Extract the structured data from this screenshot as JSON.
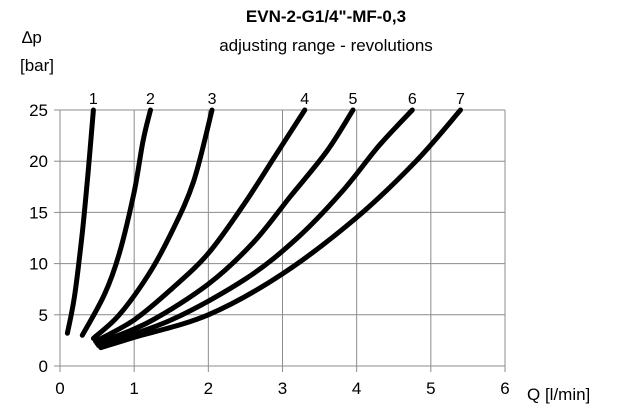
{
  "chart_data": {
    "type": "line",
    "title": "EVN-2-G1/4\"-MF-0,3",
    "subtitle": "adjusting range - revolutions",
    "ylabel_line1": "∆p",
    "ylabel_line2": "[bar]",
    "xlabel": "Q [l/min]",
    "xlim": [
      0,
      6
    ],
    "ylim": [
      0,
      25
    ],
    "xticks": [
      "0",
      "1",
      "2",
      "3",
      "4",
      "5",
      "6"
    ],
    "yticks": [
      "0",
      "5",
      "10",
      "15",
      "20",
      "25"
    ],
    "grid": true,
    "colors": {
      "curve": "#000000",
      "grid": "#8c8c8c"
    },
    "series": [
      {
        "name": "1",
        "points": [
          [
            0.1,
            3.2
          ],
          [
            0.2,
            7
          ],
          [
            0.3,
            13
          ],
          [
            0.38,
            19
          ],
          [
            0.45,
            25
          ]
        ]
      },
      {
        "name": "2",
        "points": [
          [
            0.3,
            3
          ],
          [
            0.6,
            7
          ],
          [
            0.8,
            11
          ],
          [
            1.0,
            17
          ],
          [
            1.12,
            22
          ],
          [
            1.22,
            25
          ]
        ]
      },
      {
        "name": "3",
        "points": [
          [
            0.45,
            2.7
          ],
          [
            0.8,
            5
          ],
          [
            1.2,
            9
          ],
          [
            1.5,
            13
          ],
          [
            1.8,
            18
          ],
          [
            2.05,
            25
          ]
        ]
      },
      {
        "name": "4",
        "points": [
          [
            0.48,
            2.4
          ],
          [
            1.0,
            4.5
          ],
          [
            1.5,
            7.5
          ],
          [
            2.0,
            11
          ],
          [
            2.5,
            16
          ],
          [
            2.9,
            20.5
          ],
          [
            3.3,
            25
          ]
        ]
      },
      {
        "name": "5",
        "points": [
          [
            0.5,
            2.2
          ],
          [
            1.2,
            4.3
          ],
          [
            2.0,
            8
          ],
          [
            2.6,
            12
          ],
          [
            3.1,
            16.5
          ],
          [
            3.6,
            21
          ],
          [
            3.95,
            25
          ]
        ]
      },
      {
        "name": "6",
        "points": [
          [
            0.52,
            2.0
          ],
          [
            1.5,
            4.5
          ],
          [
            2.5,
            8.5
          ],
          [
            3.2,
            12.5
          ],
          [
            3.8,
            17
          ],
          [
            4.3,
            21.5
          ],
          [
            4.75,
            25
          ]
        ]
      },
      {
        "name": "7",
        "points": [
          [
            0.55,
            1.8
          ],
          [
            1.0,
            2.8
          ],
          [
            2.0,
            5
          ],
          [
            3.0,
            9
          ],
          [
            4.0,
            14.5
          ],
          [
            4.8,
            20
          ],
          [
            5.4,
            25
          ]
        ]
      }
    ]
  }
}
